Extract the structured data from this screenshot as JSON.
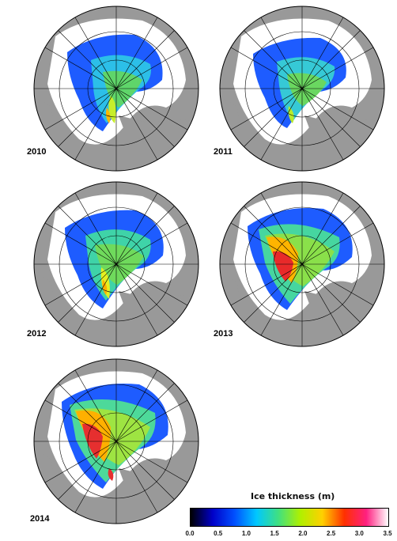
{
  "panels": [
    {
      "year": "2010"
    },
    {
      "year": "2011"
    },
    {
      "year": "2012"
    },
    {
      "year": "2013"
    },
    {
      "year": "2014"
    }
  ],
  "legend": {
    "title": "Ice thickness (m)",
    "ticks": [
      "0.0",
      "0.5",
      "1.0",
      "1.5",
      "2.0",
      "2.5",
      "3.0",
      "3.5"
    ],
    "colors": [
      "#000000",
      "#0000c8",
      "#0050ff",
      "#00c8ff",
      "#40e080",
      "#b0f000",
      "#ffd000",
      "#ff3000",
      "#ff2080",
      "#ffffff"
    ]
  },
  "colors": {
    "land": "#999999",
    "ocean": "#ffffff",
    "grid": "#000000",
    "thin_ice": "#1f5fff",
    "medium_ice": "#52d96a",
    "thick_ice": "#ffb800",
    "very_thick_ice": "#e81f32"
  }
}
